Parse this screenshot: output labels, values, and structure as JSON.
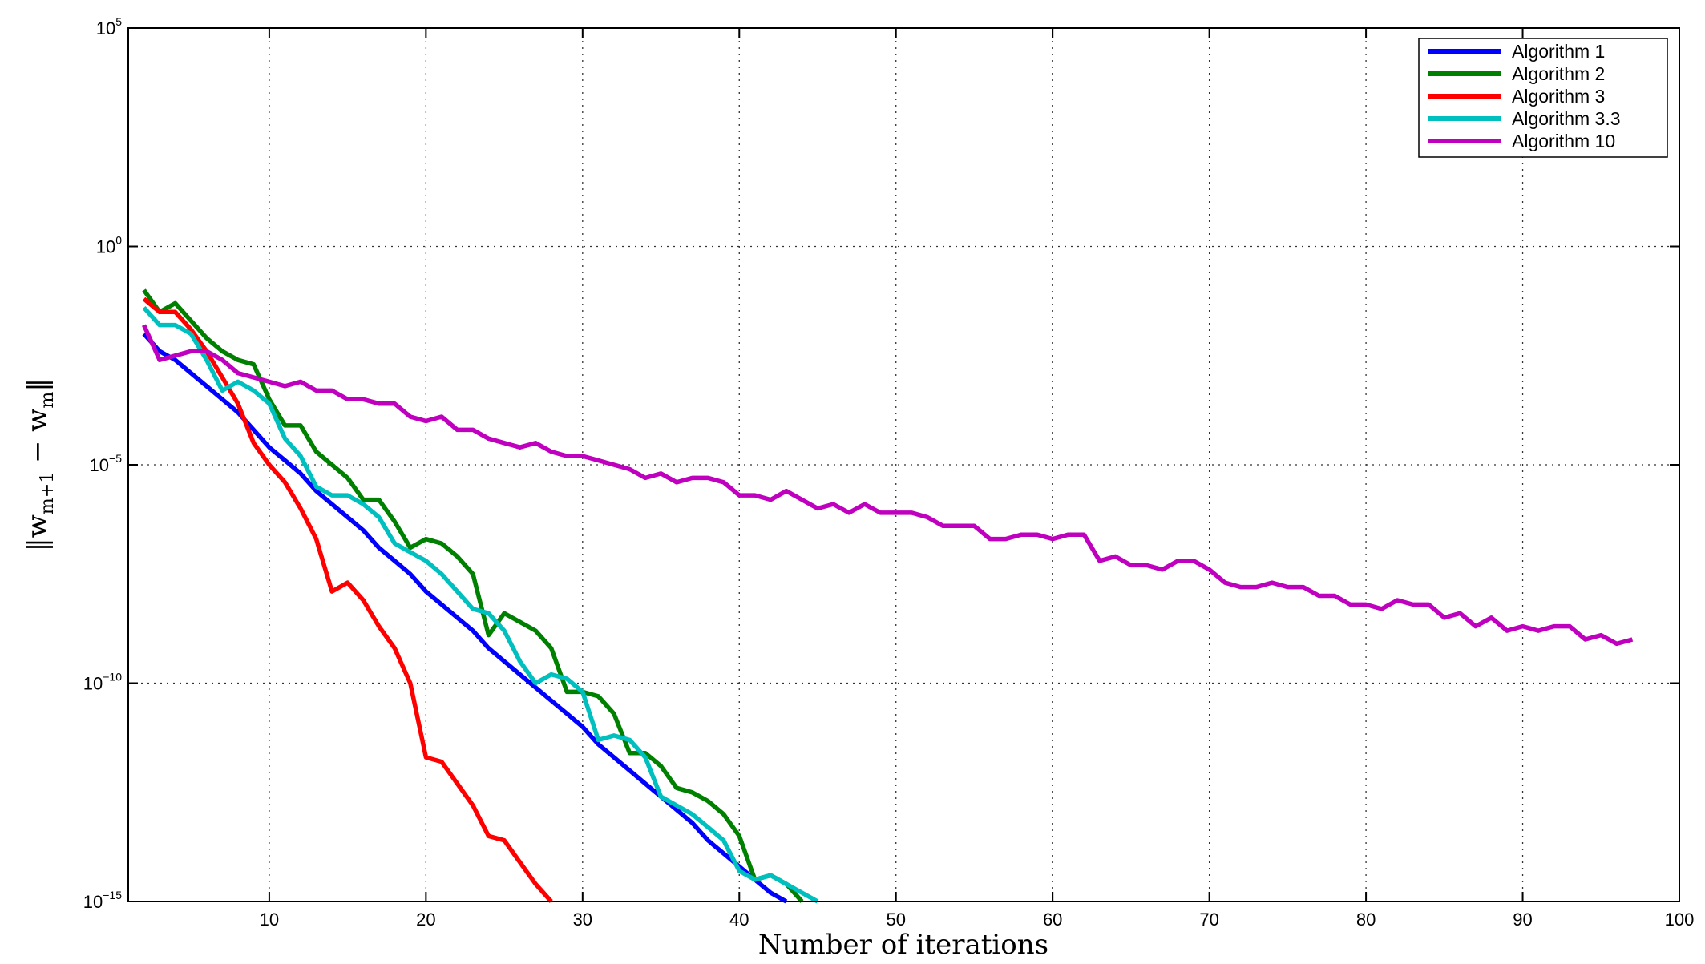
{
  "chart_data": {
    "type": "line",
    "xlabel": "Number of iterations",
    "ylabel_parts": [
      "‖w",
      "m+1",
      " − w",
      "m",
      "‖"
    ],
    "y_scale": "log",
    "xlim": [
      1,
      100
    ],
    "ylim_exp": [
      -15,
      5
    ],
    "x_ticks": [
      10,
      20,
      30,
      40,
      50,
      60,
      70,
      80,
      90,
      100
    ],
    "x_tick_labels": [
      "10",
      "20",
      "30",
      "40",
      "50",
      "60",
      "70",
      "80",
      "90",
      "100"
    ],
    "y_tick_exponents": [
      -15,
      -10,
      -5,
      0,
      5
    ],
    "y_tick_labels": [
      {
        "base": "10",
        "exp": "−15"
      },
      {
        "base": "10",
        "exp": "−10"
      },
      {
        "base": "10",
        "exp": "−5"
      },
      {
        "base": "10",
        "exp": "0"
      },
      {
        "base": "10",
        "exp": "5"
      }
    ],
    "grid": true,
    "legend_position": "top-right",
    "series": [
      {
        "name": "Algorithm 1",
        "color": "#0000ff",
        "x_start": 2,
        "log10_y": [
          -2.0,
          -2.4,
          -2.6,
          -2.9,
          -3.2,
          -3.5,
          -3.8,
          -4.2,
          -4.6,
          -4.9,
          -5.2,
          -5.6,
          -5.9,
          -6.2,
          -6.5,
          -6.9,
          -7.2,
          -7.5,
          -7.9,
          -8.2,
          -8.5,
          -8.8,
          -9.2,
          -9.5,
          -9.8,
          -10.1,
          -10.4,
          -10.7,
          -11.0,
          -11.4,
          -11.7,
          -12.0,
          -12.3,
          -12.6,
          -12.9,
          -13.2,
          -13.6,
          -13.9,
          -14.2,
          -14.5,
          -14.8,
          -15.0
        ]
      },
      {
        "name": "Algorithm 2",
        "color": "#008000",
        "x_start": 2,
        "log10_y": [
          -1.0,
          -1.5,
          -1.3,
          -1.7,
          -2.1,
          -2.4,
          -2.6,
          -2.7,
          -3.5,
          -4.1,
          -4.1,
          -4.7,
          -5.0,
          -5.3,
          -5.8,
          -5.8,
          -6.3,
          -6.9,
          -6.7,
          -6.8,
          -7.1,
          -7.5,
          -8.9,
          -8.4,
          -8.6,
          -8.8,
          -9.2,
          -10.2,
          -10.2,
          -10.3,
          -10.7,
          -11.6,
          -11.6,
          -11.9,
          -12.4,
          -12.5,
          -12.7,
          -13.0,
          -13.5,
          -14.5,
          -14.4,
          -14.6,
          -15.0
        ]
      },
      {
        "name": "Algorithm 3",
        "color": "#ff0000",
        "x_start": 2,
        "log10_y": [
          -1.2,
          -1.5,
          -1.5,
          -1.9,
          -2.4,
          -3.0,
          -3.6,
          -4.5,
          -5.0,
          -5.4,
          -6.0,
          -6.7,
          -7.9,
          -7.7,
          -8.1,
          -8.7,
          -9.2,
          -10.0,
          -11.7,
          -11.8,
          -12.3,
          -12.8,
          -13.5,
          -13.6,
          -14.1,
          -14.6,
          -15.0
        ]
      },
      {
        "name": "Algorithm 3.3",
        "color": "#00bfbf",
        "x_start": 2,
        "log10_y": [
          -1.4,
          -1.8,
          -1.8,
          -2.0,
          -2.6,
          -3.3,
          -3.1,
          -3.3,
          -3.6,
          -4.4,
          -4.8,
          -5.5,
          -5.7,
          -5.7,
          -5.9,
          -6.2,
          -6.8,
          -7.0,
          -7.2,
          -7.5,
          -7.9,
          -8.3,
          -8.4,
          -8.8,
          -9.5,
          -10.0,
          -9.8,
          -9.9,
          -10.2,
          -11.3,
          -11.2,
          -11.3,
          -11.7,
          -12.6,
          -12.8,
          -13.0,
          -13.3,
          -13.6,
          -14.3,
          -14.5,
          -14.4,
          -14.6,
          -14.8,
          -15.0
        ]
      },
      {
        "name": "Algorithm 10",
        "color": "#bf00bf",
        "x_start": 2,
        "log10_y": [
          -1.8,
          -2.6,
          -2.5,
          -2.4,
          -2.4,
          -2.6,
          -2.9,
          -3.0,
          -3.1,
          -3.2,
          -3.1,
          -3.3,
          -3.3,
          -3.5,
          -3.5,
          -3.6,
          -3.6,
          -3.9,
          -4.0,
          -3.9,
          -4.2,
          -4.2,
          -4.4,
          -4.5,
          -4.6,
          -4.5,
          -4.7,
          -4.8,
          -4.8,
          -4.9,
          -5.0,
          -5.1,
          -5.3,
          -5.2,
          -5.4,
          -5.3,
          -5.3,
          -5.4,
          -5.7,
          -5.7,
          -5.8,
          -5.6,
          -5.8,
          -6.0,
          -5.9,
          -6.1,
          -5.9,
          -6.1,
          -6.1,
          -6.1,
          -6.2,
          -6.4,
          -6.4,
          -6.4,
          -6.7,
          -6.7,
          -6.6,
          -6.6,
          -6.7,
          -6.6,
          -6.6,
          -7.2,
          -7.1,
          -7.3,
          -7.3,
          -7.4,
          -7.2,
          -7.2,
          -7.4,
          -7.7,
          -7.8,
          -7.8,
          -7.7,
          -7.8,
          -7.8,
          -8.0,
          -8.0,
          -8.2,
          -8.2,
          -8.3,
          -8.1,
          -8.2,
          -8.2,
          -8.5,
          -8.4,
          -8.7,
          -8.5,
          -8.8,
          -8.7,
          -8.8,
          -8.7,
          -8.7,
          -9.0,
          -8.9,
          -9.1,
          -9.0
        ]
      }
    ]
  }
}
